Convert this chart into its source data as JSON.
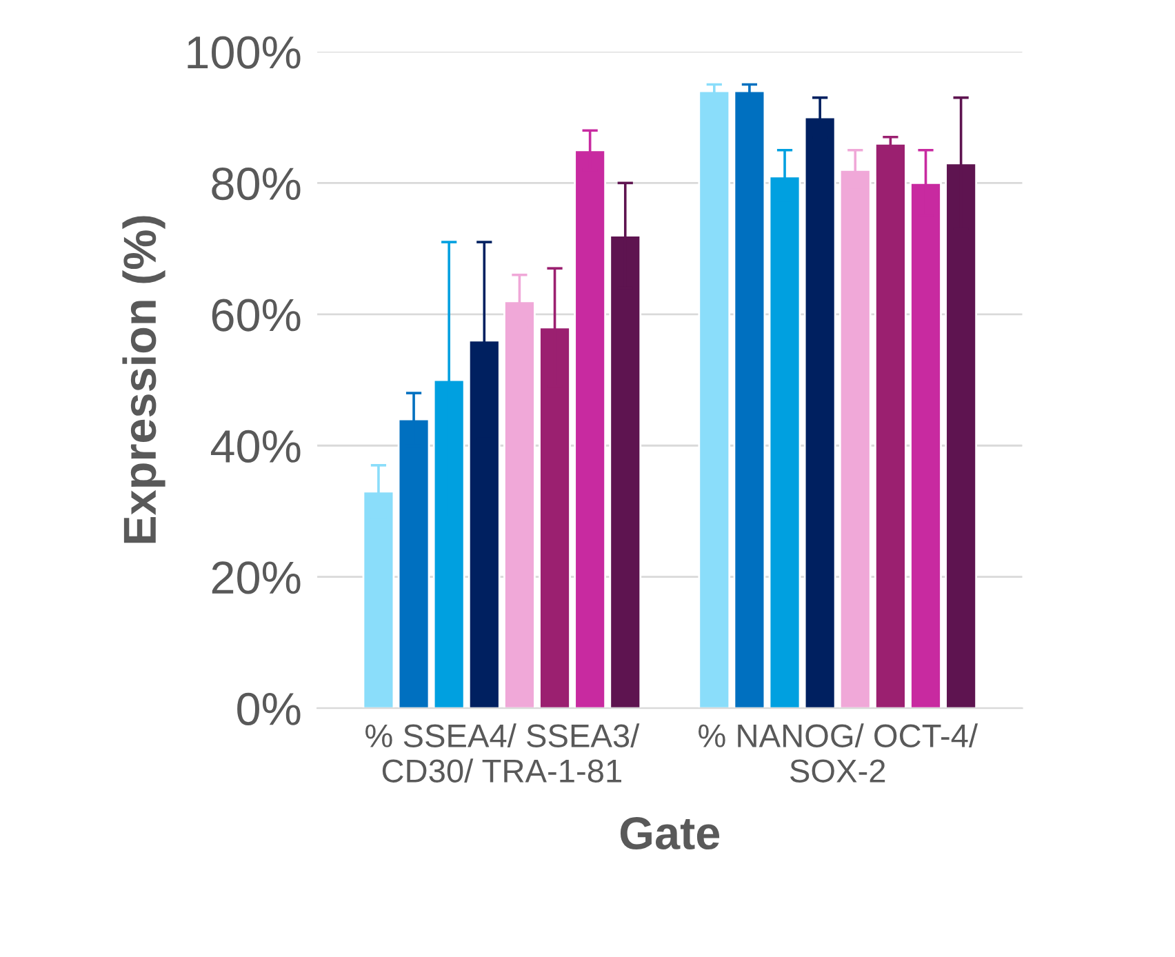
{
  "chart_data": {
    "type": "bar",
    "xlabel": "Gate",
    "ylabel": "Expression (%)",
    "categories": [
      "% SSEA4/ SSEA3/\nCD30/ TRA-1-81",
      "% NANOG/ OCT-4/\nSOX-2"
    ],
    "ylim": [
      0,
      100
    ],
    "yticks": [
      {
        "value": 0,
        "label": "0%"
      },
      {
        "value": 20,
        "label": "20%"
      },
      {
        "value": 40,
        "label": "40%"
      },
      {
        "value": 60,
        "label": "60%"
      },
      {
        "value": 80,
        "label": "80%"
      },
      {
        "value": 100,
        "label": "100%"
      }
    ],
    "grid": "y",
    "legend": false,
    "series": [
      {
        "color": "#8ADDFA",
        "values": [
          33,
          94
        ],
        "errors": [
          4,
          1
        ]
      },
      {
        "color": "#0070C0",
        "values": [
          44,
          94
        ],
        "errors": [
          4,
          1
        ]
      },
      {
        "color": "#00A0E0",
        "values": [
          50,
          81
        ],
        "errors": [
          21,
          4
        ]
      },
      {
        "color": "#002060",
        "values": [
          56,
          90
        ],
        "errors": [
          15,
          3
        ]
      },
      {
        "color": "#F0A8D8",
        "values": [
          62,
          82
        ],
        "errors": [
          4,
          3
        ]
      },
      {
        "color": "#9B2070",
        "values": [
          58,
          86
        ],
        "errors": [
          9,
          1
        ]
      },
      {
        "color": "#C82AA0",
        "values": [
          85,
          80
        ],
        "errors": [
          3,
          5
        ]
      },
      {
        "color": "#5E1450",
        "values": [
          72,
          83
        ],
        "errors": [
          8,
          10
        ]
      }
    ]
  }
}
